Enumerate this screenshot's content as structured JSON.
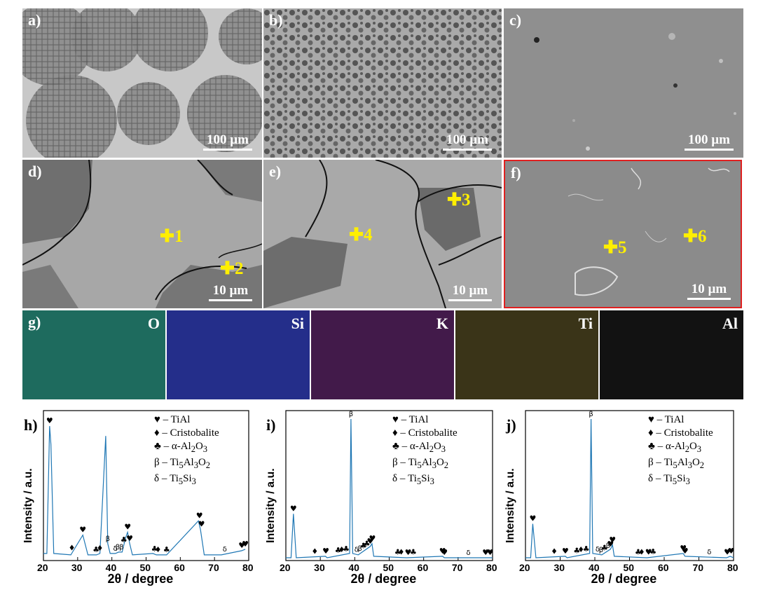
{
  "sem_panels": [
    {
      "label": "a)",
      "scale": "100 µm"
    },
    {
      "label": "b)",
      "scale": "100 µm"
    },
    {
      "label": "c)",
      "scale": "100 µm"
    },
    {
      "label": "d)",
      "scale": "10 µm"
    },
    {
      "label": "e)",
      "scale": "10 µm"
    },
    {
      "label": "f)",
      "scale": "10 µm"
    }
  ],
  "points": [
    "1",
    "2",
    "3",
    "4",
    "5",
    "6"
  ],
  "eds": {
    "label": "g)",
    "maps": [
      {
        "element": "O",
        "color": "#1e6b5e"
      },
      {
        "element": "Si",
        "color": "#242e8a"
      },
      {
        "element": "K",
        "color": "#421a4a"
      },
      {
        "element": "Ti",
        "color": "#3a3418"
      },
      {
        "element": "Al",
        "color": "#121212"
      }
    ]
  },
  "xrd_common": {
    "ylabel": "Intensity / a.u.",
    "xlabel": "2θ / degree",
    "xticks": [
      "20",
      "30",
      "40",
      "50",
      "60",
      "70",
      "80"
    ],
    "legend": [
      {
        "symbol": "♥",
        "text": " – TiAl"
      },
      {
        "symbol": "♦",
        "text": " – Cristobalite"
      },
      {
        "symbol": "♣",
        "text": " – α-Al",
        "sub": "2",
        "text2": "O",
        "sub2": "3"
      },
      {
        "symbol": "β",
        "text": " – Ti",
        "sub": "5",
        "text2": "Al",
        "sub2": "3",
        "text3": "O",
        "sub3": "2"
      },
      {
        "symbol": "δ",
        "text": " – Ti",
        "sub": "5",
        "text2": "Si",
        "sub2": "3"
      }
    ],
    "line_color": "#1f77b4"
  },
  "chart_data": [
    {
      "type": "line",
      "panel": "h)",
      "xlim": [
        20,
        80
      ],
      "x": [
        20,
        21,
        21.8,
        22.2,
        23,
        28,
        31.5,
        33,
        35.5,
        36.5,
        38.2,
        38.8,
        39.5,
        41,
        42,
        43,
        44,
        44.6,
        45.2,
        46,
        52,
        53,
        55.5,
        56,
        65.3,
        65.9,
        67,
        72,
        78,
        79
      ],
      "y": [
        0.05,
        0.05,
        0.95,
        0.82,
        0.05,
        0.04,
        0.18,
        0.04,
        0.04,
        0.05,
        0.88,
        0.12,
        0.05,
        0.05,
        0.06,
        0.06,
        0.16,
        0.2,
        0.12,
        0.04,
        0.05,
        0.04,
        0.04,
        0.04,
        0.28,
        0.22,
        0.04,
        0.04,
        0.07,
        0.08
      ],
      "peaks": [
        {
          "x": 21.8,
          "sym": "♥"
        },
        {
          "x": 28.3,
          "sym": "♦"
        },
        {
          "x": 31.5,
          "sym": "♥"
        },
        {
          "x": 35.4,
          "sym": "♣"
        },
        {
          "x": 36.5,
          "sym": "♦"
        },
        {
          "x": 38.8,
          "sym": "β"
        },
        {
          "x": 41.0,
          "sym": "δ"
        },
        {
          "x": 41.7,
          "sym": "β"
        },
        {
          "x": 42.8,
          "sym": "β"
        },
        {
          "x": 43.5,
          "sym": "♣"
        },
        {
          "x": 44.6,
          "sym": "♥"
        },
        {
          "x": 45.2,
          "sym": "♥"
        },
        {
          "x": 52.5,
          "sym": "♣"
        },
        {
          "x": 53.5,
          "sym": "♦"
        },
        {
          "x": 56.0,
          "sym": "♣"
        },
        {
          "x": 65.6,
          "sym": "♥"
        },
        {
          "x": 66.2,
          "sym": "♥"
        },
        {
          "x": 73.0,
          "sym": "δ"
        },
        {
          "x": 78.0,
          "sym": "♥"
        },
        {
          "x": 79.0,
          "sym": "♥"
        }
      ]
    },
    {
      "type": "line",
      "panel": "i)",
      "xlim": [
        20,
        80
      ],
      "x": [
        20,
        21.5,
        22.2,
        23,
        31.5,
        32,
        38.5,
        38.9,
        39.4,
        41,
        44.5,
        45,
        45.5,
        55,
        65.5,
        66,
        78.5,
        80
      ],
      "y": [
        0.02,
        0.02,
        0.33,
        0.02,
        0.03,
        0.02,
        0.05,
        1.0,
        0.05,
        0.04,
        0.1,
        0.12,
        0.03,
        0.02,
        0.03,
        0.02,
        0.02,
        0.02
      ],
      "peaks": [
        {
          "x": 22.2,
          "sym": "♥"
        },
        {
          "x": 28.4,
          "sym": "♦"
        },
        {
          "x": 31.6,
          "sym": "♥"
        },
        {
          "x": 35.2,
          "sym": "♣"
        },
        {
          "x": 36.2,
          "sym": "♦"
        },
        {
          "x": 37.5,
          "sym": "♣"
        },
        {
          "x": 38.9,
          "sym": "β"
        },
        {
          "x": 40.5,
          "sym": "δ"
        },
        {
          "x": 41.5,
          "sym": "β"
        },
        {
          "x": 42.5,
          "sym": "♣"
        },
        {
          "x": 43.5,
          "sym": "♣"
        },
        {
          "x": 44.5,
          "sym": "♥"
        },
        {
          "x": 45.1,
          "sym": "♥"
        },
        {
          "x": 52.5,
          "sym": "♣"
        },
        {
          "x": 53.5,
          "sym": "♦"
        },
        {
          "x": 55.5,
          "sym": "♥"
        },
        {
          "x": 57.0,
          "sym": "♣"
        },
        {
          "x": 65.5,
          "sym": "♥"
        },
        {
          "x": 66.0,
          "sym": "♥"
        },
        {
          "x": 73.0,
          "sym": "δ"
        },
        {
          "x": 78.0,
          "sym": "♥"
        },
        {
          "x": 79.3,
          "sym": "♥"
        }
      ]
    },
    {
      "type": "line",
      "panel": "j)",
      "xlim": [
        20,
        80
      ],
      "x": [
        20,
        21.5,
        22.1,
        23,
        31.5,
        32,
        38.5,
        38.9,
        39.4,
        42,
        44.5,
        45.1,
        45.6,
        55,
        65.5,
        66,
        78,
        79,
        80
      ],
      "y": [
        0.02,
        0.02,
        0.26,
        0.02,
        0.03,
        0.02,
        0.05,
        1.0,
        0.05,
        0.04,
        0.08,
        0.11,
        0.03,
        0.02,
        0.05,
        0.03,
        0.02,
        0.03,
        0.02
      ],
      "peaks": [
        {
          "x": 22.1,
          "sym": "♥"
        },
        {
          "x": 28.3,
          "sym": "♦"
        },
        {
          "x": 31.5,
          "sym": "♥"
        },
        {
          "x": 34.8,
          "sym": "♣"
        },
        {
          "x": 36.0,
          "sym": "♦"
        },
        {
          "x": 37.5,
          "sym": "♣"
        },
        {
          "x": 38.9,
          "sym": "β"
        },
        {
          "x": 40.8,
          "sym": "δ"
        },
        {
          "x": 41.8,
          "sym": "β"
        },
        {
          "x": 42.8,
          "sym": "♣"
        },
        {
          "x": 43.8,
          "sym": "β"
        },
        {
          "x": 44.5,
          "sym": "♥"
        },
        {
          "x": 45.1,
          "sym": "♥"
        },
        {
          "x": 52.5,
          "sym": "♣"
        },
        {
          "x": 53.5,
          "sym": "♦"
        },
        {
          "x": 55.5,
          "sym": "♥"
        },
        {
          "x": 56.8,
          "sym": "♣"
        },
        {
          "x": 65.5,
          "sym": "♥"
        },
        {
          "x": 66.0,
          "sym": "♥"
        },
        {
          "x": 73.0,
          "sym": "δ"
        },
        {
          "x": 78.2,
          "sym": "♥"
        },
        {
          "x": 79.3,
          "sym": "♥"
        }
      ]
    }
  ]
}
